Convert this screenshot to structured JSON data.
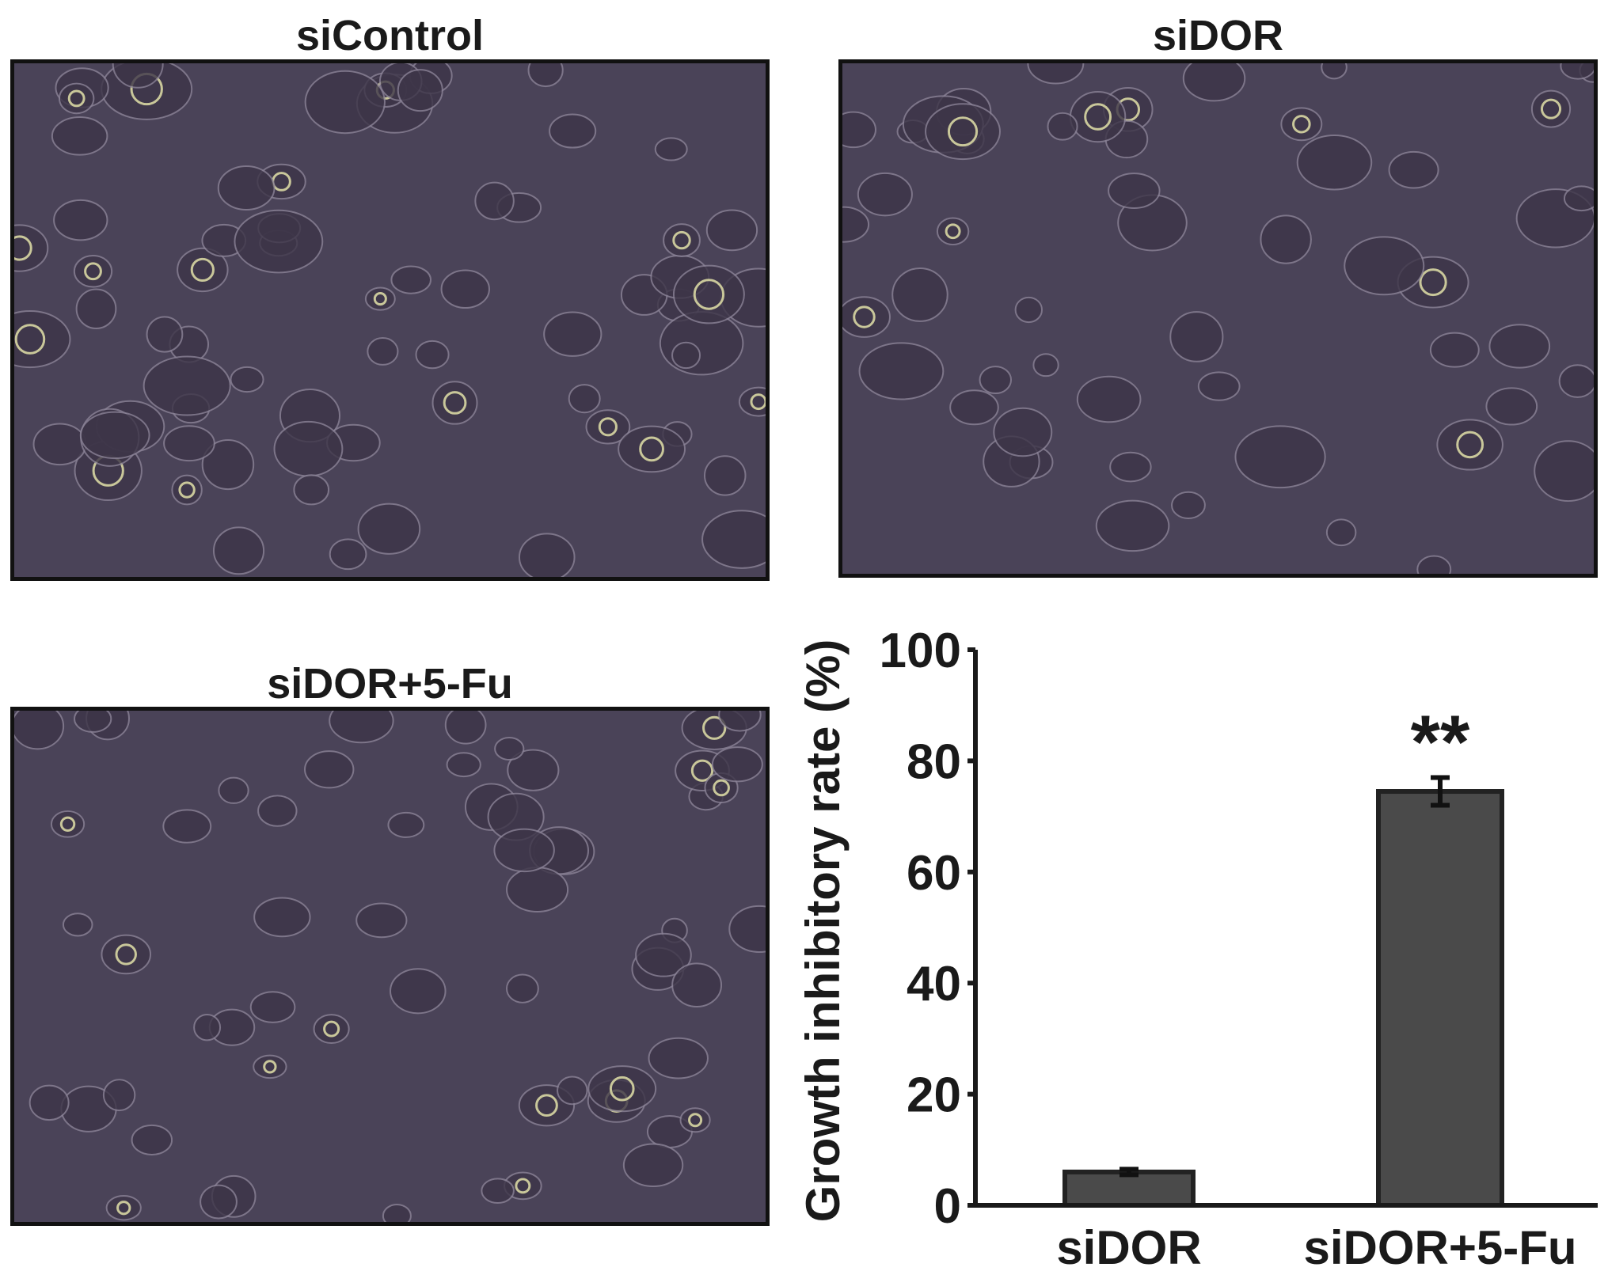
{
  "panels": [
    {
      "title": "siControl",
      "density": 0.6
    },
    {
      "title": "siDOR",
      "density": 0.45
    },
    {
      "title": "siDOR+5-Fu",
      "density": 0.5
    }
  ],
  "colors": {
    "micrograph_bg": "#4a4358",
    "bar_fill": "#4a4a4a",
    "axis": "#1a1a1a"
  },
  "chart_data": {
    "type": "bar",
    "categories": [
      "siDOR",
      "siDOR+5-Fu"
    ],
    "values": [
      6,
      74.5
    ],
    "errors": [
      0.5,
      2.5
    ],
    "annotations": [
      "",
      "**"
    ],
    "ylabel": "Growth inhibitory rate (%)",
    "xlabel": "",
    "ylim": [
      0,
      100
    ],
    "yticks": [
      "0",
      "20",
      "40",
      "60",
      "80",
      "100"
    ],
    "grid": false
  }
}
